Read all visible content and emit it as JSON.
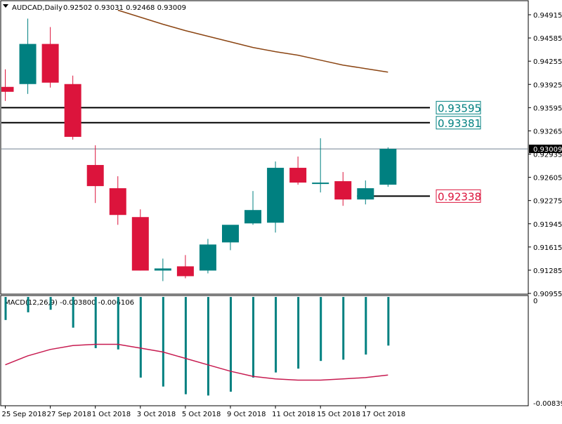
{
  "header": {
    "symbol": "AUDCAD,Daily",
    "ohlc": "0.92502 0.93031 0.92468 0.93009"
  },
  "macd_label": "MACD(12,26,9) -0.003800 -0.006106",
  "colors": {
    "bull": "#008080",
    "bear": "#dc143c",
    "ma": "#8b4513",
    "signal": "#c71b50",
    "current_price_line": "#708090",
    "grid_line": "#000000"
  },
  "chart_data": [
    {
      "type": "candlestick",
      "symbol": "AUDCAD",
      "timeframe": "Daily",
      "ylim": [
        0.90955,
        0.94915
      ],
      "yticks": [
        "0.94915",
        "0.94585",
        "0.94255",
        "0.93925",
        "0.93595",
        "0.93265",
        "0.92935",
        "0.92605",
        "0.92275",
        "0.91945",
        "0.91615",
        "0.91285",
        "0.90955"
      ],
      "current_price": "0.93009",
      "xticks": [
        "25 Sep 2018",
        "27 Sep 2018",
        "1 Oct 2018",
        "3 Oct 2018",
        "5 Oct 2018",
        "9 Oct 2018",
        "11 Oct 2018",
        "15 Oct 2018",
        "17 Oct 2018"
      ],
      "candles": [
        {
          "o": 0.9389,
          "h": 0.9414,
          "l": 0.9369,
          "c": 0.9382
        },
        {
          "o": 0.9393,
          "h": 0.9486,
          "l": 0.9379,
          "c": 0.945
        },
        {
          "o": 0.945,
          "h": 0.9474,
          "l": 0.9388,
          "c": 0.9395
        },
        {
          "o": 0.9393,
          "h": 0.9405,
          "l": 0.9314,
          "c": 0.9318
        },
        {
          "o": 0.9278,
          "h": 0.9306,
          "l": 0.9224,
          "c": 0.9248
        },
        {
          "o": 0.9245,
          "h": 0.9262,
          "l": 0.9193,
          "c": 0.9207
        },
        {
          "o": 0.9204,
          "h": 0.9215,
          "l": 0.9128,
          "c": 0.9128
        },
        {
          "o": 0.9128,
          "h": 0.9145,
          "l": 0.9113,
          "c": 0.9131
        },
        {
          "o": 0.9134,
          "h": 0.915,
          "l": 0.9117,
          "c": 0.912
        },
        {
          "o": 0.9128,
          "h": 0.9173,
          "l": 0.9124,
          "c": 0.9165
        },
        {
          "o": 0.9168,
          "h": 0.919,
          "l": 0.9157,
          "c": 0.9193
        },
        {
          "o": 0.9195,
          "h": 0.9241,
          "l": 0.9193,
          "c": 0.9214
        },
        {
          "o": 0.9196,
          "h": 0.9283,
          "l": 0.9182,
          "c": 0.9274
        },
        {
          "o": 0.9274,
          "h": 0.929,
          "l": 0.925,
          "c": 0.9253
        },
        {
          "o": 0.9251,
          "h": 0.9316,
          "l": 0.9239,
          "c": 0.9253
        },
        {
          "o": 0.9255,
          "h": 0.9268,
          "l": 0.922,
          "c": 0.9229
        },
        {
          "o": 0.9229,
          "h": 0.9256,
          "l": 0.9222,
          "c": 0.9245
        },
        {
          "o": 0.925,
          "h": 0.9303,
          "l": 0.9247,
          "c": 0.9301
        }
      ],
      "moving_average": [
        {
          "bar": 5,
          "value": 0.9498
        },
        {
          "bar": 6,
          "value": 0.9488
        },
        {
          "bar": 7,
          "value": 0.9478
        },
        {
          "bar": 8,
          "value": 0.9469
        },
        {
          "bar": 9,
          "value": 0.9461
        },
        {
          "bar": 10,
          "value": 0.9453
        },
        {
          "bar": 11,
          "value": 0.9445
        },
        {
          "bar": 12,
          "value": 0.9439
        },
        {
          "bar": 13,
          "value": 0.9434
        },
        {
          "bar": 14,
          "value": 0.9427
        },
        {
          "bar": 15,
          "value": 0.942
        },
        {
          "bar": 16,
          "value": 0.9415
        },
        {
          "bar": 17,
          "value": 0.941
        }
      ],
      "levels": [
        {
          "label": "0.93595",
          "value": 0.93595,
          "color": "#008080",
          "from_bar": 0
        },
        {
          "label": "0.93381",
          "value": 0.93381,
          "color": "#008080",
          "from_bar": 0
        },
        {
          "label": "0.92338",
          "value": 0.92338,
          "color": "#dc143c",
          "from_bar": 16
        }
      ]
    },
    {
      "type": "bar",
      "name": "MACD(12,26,9)",
      "main": -0.0038,
      "signal_value": -0.006106,
      "ylim": [
        -0.00839,
        0
      ],
      "yticks": [
        "0",
        "-0.00839"
      ],
      "histogram": [
        -0.0018,
        -0.0012,
        -0.001,
        -0.0024,
        -0.004,
        -0.0041,
        -0.0063,
        -0.007,
        -0.0076,
        -0.0077,
        -0.0074,
        -0.0063,
        -0.0059,
        -0.0056,
        -0.005,
        -0.0049,
        -0.0045,
        -0.0038
      ],
      "signal": [
        -0.0053,
        -0.0046,
        -0.0041,
        -0.0038,
        -0.0037,
        -0.0037,
        -0.004,
        -0.0043,
        -0.0048,
        -0.0053,
        -0.0058,
        -0.0062,
        -0.0064,
        -0.0065,
        -0.0065,
        -0.0064,
        -0.0063,
        -0.0061
      ]
    }
  ]
}
